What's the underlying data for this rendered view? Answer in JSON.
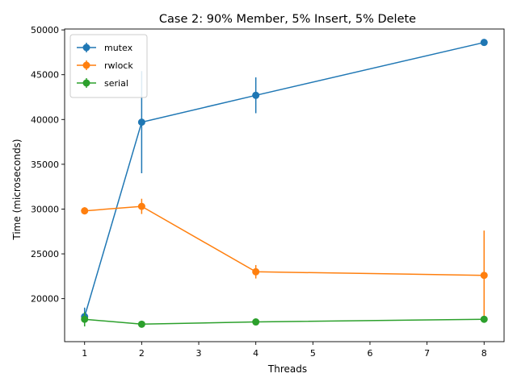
{
  "chart_data": {
    "type": "line",
    "title": "Case 2: 90% Member, 5% Insert, 5% Delete",
    "xlabel": "Threads",
    "ylabel": "Time (microseconds)",
    "xlim": [
      0.65,
      8.35
    ],
    "ylim": [
      15200,
      50100
    ],
    "x_ticks": [
      1,
      2,
      3,
      4,
      5,
      6,
      7,
      8
    ],
    "y_ticks": [
      20000,
      25000,
      30000,
      35000,
      40000,
      45000,
      50000
    ],
    "grid": false,
    "legend_position": "top-left",
    "series": [
      {
        "name": "mutex",
        "color": "#1f77b4",
        "x": [
          1,
          2,
          4,
          8
        ],
        "y": [
          18000,
          39700,
          42700,
          48600
        ],
        "err": [
          1000,
          5700,
          2000,
          300
        ]
      },
      {
        "name": "rwlock",
        "color": "#ff7f0e",
        "x": [
          1,
          2,
          4,
          8
        ],
        "y": [
          29800,
          30300,
          23000,
          22600
        ],
        "err": [
          400,
          850,
          750,
          5000
        ]
      },
      {
        "name": "serial",
        "color": "#2ca02c",
        "x": [
          1,
          2,
          4,
          8
        ],
        "y": [
          17700,
          17150,
          17400,
          17700
        ],
        "err": [
          800,
          200,
          200,
          200
        ]
      }
    ]
  }
}
